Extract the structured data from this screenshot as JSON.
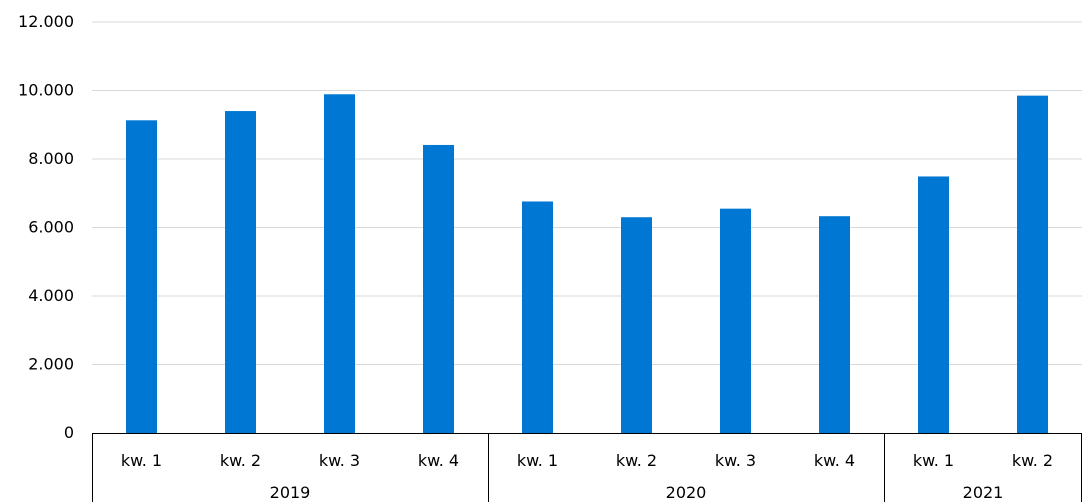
{
  "chart_data": {
    "type": "bar",
    "title": "",
    "xlabel": "",
    "ylabel": "",
    "ylim": [
      0,
      12000
    ],
    "yticks": [
      0,
      2000,
      4000,
      6000,
      8000,
      10000,
      12000
    ],
    "ytick_labels": [
      "0",
      "2.000",
      "4.000",
      "6.000",
      "8.000",
      "10.000",
      "12.000"
    ],
    "grid": true,
    "bar_color": "#0077d2",
    "categories": [
      "kw. 1",
      "kw. 2",
      "kw. 3",
      "kw. 4",
      "kw. 1",
      "kw. 2",
      "kw. 3",
      "kw. 4",
      "kw. 1",
      "kw. 2"
    ],
    "values": [
      9130,
      9400,
      9890,
      8410,
      6760,
      6300,
      6550,
      6330,
      7490,
      9850
    ],
    "groups": [
      {
        "label": "2019",
        "count": 4
      },
      {
        "label": "2020",
        "count": 4
      },
      {
        "label": "2021",
        "count": 2
      }
    ]
  }
}
